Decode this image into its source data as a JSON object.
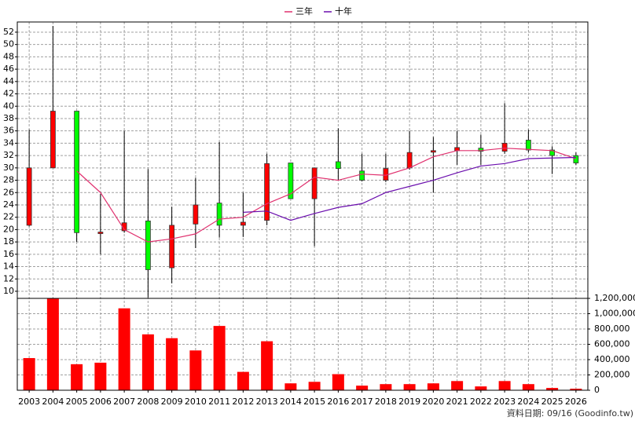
{
  "chart_data": [
    {
      "type": "candlestick",
      "open": [
        20.7,
        30,
        39.2,
        19.4,
        19.8,
        21.4,
        13.8,
        20.9,
        24.3,
        20.7,
        21.5,
        30.8,
        25,
        31,
        29.5,
        28,
        30,
        32.6,
        32.8,
        33.2,
        32.7,
        34.5,
        32.9,
        32
      ],
      "close": [
        30,
        39.2,
        19.5,
        19.6,
        21.1,
        13.5,
        20.7,
        24,
        20.7,
        21.2,
        30.7,
        25,
        30,
        29.9,
        28,
        29.9,
        32.5,
        32.8,
        33.3,
        32.7,
        34,
        32.9,
        32,
        30.8
      ],
      "high": [
        36.2,
        53,
        39.2,
        25.8,
        36,
        29.8,
        23.7,
        28.4,
        34.2,
        26,
        32.3,
        30.8,
        30,
        36.4,
        32.3,
        32.3,
        36,
        35,
        36,
        35.4,
        40.5,
        36.2,
        33.5,
        32.5
      ],
      "low": [
        20.5,
        30,
        18,
        16,
        19.5,
        9,
        11.3,
        17,
        18.7,
        18.8,
        20.7,
        25,
        17.3,
        28,
        27.8,
        27.7,
        29.7,
        26,
        30.5,
        30.5,
        32.3,
        32.5,
        29,
        30.5
      ],
      "up_color": "#ff0000",
      "down_color": "#00ff00",
      "series": [
        {
          "name": "三年",
          "color": "#e0306e",
          "values": [
            null,
            null,
            29.5,
            26,
            20,
            18,
            18.5,
            19.3,
            21.7,
            22,
            24.2,
            25.8,
            28.5,
            28,
            29,
            28.8,
            30,
            31.8,
            32.8,
            32.8,
            33.2,
            33,
            32.8,
            31.5
          ]
        },
        {
          "name": "十年",
          "color": "#6a0dad",
          "values": [
            null,
            null,
            null,
            null,
            null,
            null,
            null,
            null,
            null,
            22.8,
            23,
            21.5,
            22.6,
            23.6,
            24.2,
            26,
            27,
            28,
            29.2,
            30.3,
            30.7,
            31.5,
            31.6,
            31.7
          ]
        }
      ],
      "ylim": [
        8.85,
        53.65
      ],
      "yticks": [
        10,
        12,
        14,
        16,
        18,
        20,
        22,
        24,
        26,
        28,
        30,
        32,
        34,
        36,
        38,
        40,
        42,
        44,
        46,
        48,
        50,
        52
      ],
      "grid": true
    },
    {
      "type": "bar",
      "categories": [
        "2003",
        "2004",
        "2005",
        "2006",
        "2007",
        "2008",
        "2009",
        "2010",
        "2011",
        "2012",
        "2013",
        "2014",
        "2015",
        "2016",
        "2017",
        "2018",
        "2019",
        "2020",
        "2021",
        "2022",
        "2023",
        "2024",
        "2025",
        "2026"
      ],
      "values": [
        420000,
        1200000,
        340000,
        360000,
        1070000,
        730000,
        680000,
        520000,
        840000,
        240000,
        640000,
        90000,
        110000,
        210000,
        60000,
        80000,
        80000,
        90000,
        120000,
        50000,
        120000,
        80000,
        30000,
        20000
      ],
      "color": "#ff0000",
      "ylim": [
        0,
        1200000
      ],
      "yticks": [
        0,
        {
          "value": 200000,
          "label": "200,000"
        },
        {
          "value": 400000,
          "label": "400,000"
        },
        {
          "value": 600000,
          "label": "600,000"
        },
        {
          "value": 800000,
          "label": "800,000"
        },
        {
          "value": 1000000,
          "label": "1,000,000"
        },
        {
          "value": 1200000,
          "label": "1,200,000"
        }
      ],
      "grid": true,
      "note": "資料日期: 09/16 (Goodinfo.tw)"
    }
  ]
}
